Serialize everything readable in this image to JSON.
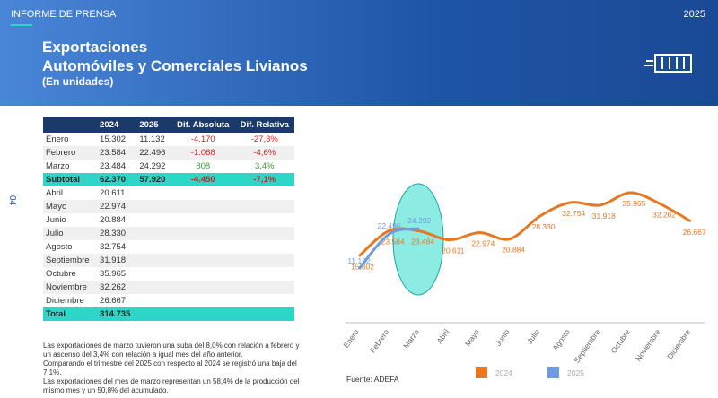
{
  "header": {
    "label": "INFORME DE PRENSA",
    "year": "2025",
    "title": [
      "Exportaciones",
      "Automóviles y Comerciales Livianos",
      "(En unidades)"
    ],
    "page": "04"
  },
  "table": {
    "header": [
      "2024",
      "2025",
      "Dif. Absoluta",
      "Dif. Relativa"
    ],
    "rows": [
      [
        "Enero",
        "15.302",
        "11.132",
        "-4.170",
        "-27,3%"
      ],
      [
        "Febrero",
        "23.584",
        "22.496",
        "-1.088",
        "-4,6%"
      ],
      [
        "Marzo",
        "23.484",
        "24.292",
        "808",
        "3,4%"
      ],
      [
        "Subtotal",
        "62.370",
        "57.920",
        "-4.450",
        "-7,1%"
      ],
      [
        "Abril",
        "20.611"
      ],
      [
        "Mayo",
        "22.974"
      ],
      [
        "Junio",
        "20.884"
      ],
      [
        "Julio",
        "28.330"
      ],
      [
        "Agosto",
        "32.754"
      ],
      [
        "Septiembre",
        "31.918"
      ],
      [
        "Octubre",
        "35.965"
      ],
      [
        "Noviembre",
        "32.262"
      ],
      [
        "Diciembre",
        "26.667"
      ],
      [
        "Total",
        "314.735"
      ]
    ]
  },
  "notes": [
    "Las exportaciones de marzo tuvieron una suba del 8,0% con relación a febrero y un ascenso del 3,4% con relación a igual mes del año anterior.",
    "Comparando el trimestre del 2025 con respecto al 2024 se registró una baja del 7,1%.",
    "Las exportaciones del mes de marzo representan un 58,4% de la producción del mismo mes y un 50,8% del acumulado."
  ],
  "chart_data": {
    "type": "line",
    "source": "Fuente: ADEFA",
    "categories": [
      "Enero",
      "Febrero",
      "Marzo",
      "Abril",
      "Mayo",
      "Junio",
      "Julio",
      "Agosto",
      "Septiembre",
      "Octubre",
      "Noviembre",
      "Diciembre"
    ],
    "series": [
      {
        "name": "2024",
        "color": "#e87722",
        "values": [
          15302,
          23584,
          23484,
          20611,
          22974,
          20884,
          28330,
          32754,
          31918,
          35965,
          32262,
          26667
        ],
        "value_labels": [
          "15.302",
          "23.584",
          "23.484",
          "20.611",
          "22.974",
          "20.884",
          "28.330",
          "32.754",
          "31.918",
          "35.965",
          "32.262",
          "26.667"
        ]
      },
      {
        "name": "2025",
        "color": "#6f9be0",
        "values": [
          11132,
          22496,
          24292,
          null,
          null,
          null,
          null,
          null,
          null,
          null,
          null,
          null
        ],
        "value_labels": [
          "11.132",
          "22.496",
          "24.292",
          null,
          null,
          null,
          null,
          null,
          null,
          null,
          null,
          null
        ]
      }
    ]
  }
}
